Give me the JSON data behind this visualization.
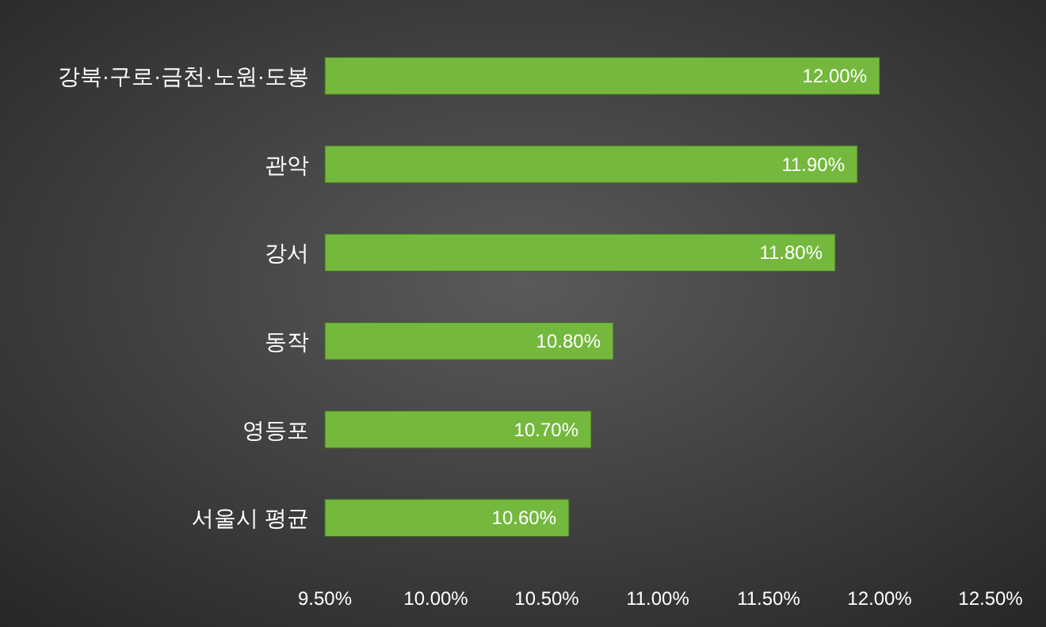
{
  "chart_data": {
    "type": "bar",
    "orientation": "horizontal",
    "categories": [
      "강북·구로·금천·노원·도봉",
      "관악",
      "강서",
      "동작",
      "영등포",
      "서울시 평균"
    ],
    "values": [
      12.0,
      11.9,
      11.8,
      10.8,
      10.7,
      10.6
    ],
    "value_labels": [
      "12.00%",
      "11.90%",
      "11.80%",
      "10.80%",
      "10.70%",
      "10.60%"
    ],
    "color": "#74b83e",
    "xlim": [
      9.5,
      12.5
    ],
    "xticks": [
      {
        "value": 9.5,
        "label": "9.50%"
      },
      {
        "value": 10,
        "label": "10.00%"
      },
      {
        "value": 10.5,
        "label": "10.50%"
      },
      {
        "value": 11,
        "label": "11.00%"
      },
      {
        "value": 11.5,
        "label": "11.50%"
      },
      {
        "value": 12,
        "label": "12.00%"
      },
      {
        "value": 12.5,
        "label": "12.50%"
      }
    ]
  }
}
